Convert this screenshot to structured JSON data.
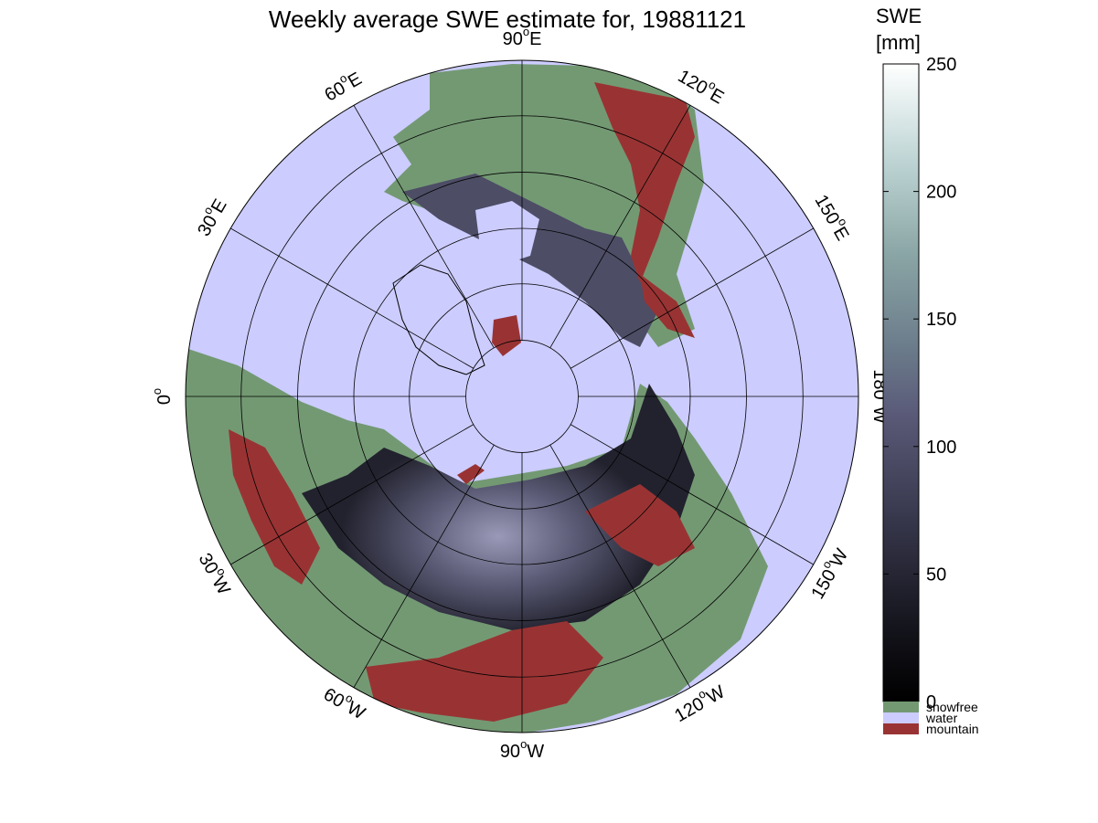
{
  "title": "Weekly average SWE estimate for, 19881121",
  "map": {
    "projection": "north polar stereographic",
    "longitude_labels": [
      {
        "text": "90",
        "hemi": "W",
        "lon": -90
      },
      {
        "text": "60",
        "hemi": "W",
        "lon": -60
      },
      {
        "text": "30",
        "hemi": "W",
        "lon": -30
      },
      {
        "text": "0",
        "hemi": "",
        "lon": 0
      },
      {
        "text": "30",
        "hemi": "E",
        "lon": 30
      },
      {
        "text": "60",
        "hemi": "E",
        "lon": 60
      },
      {
        "text": "90",
        "hemi": "E",
        "lon": 90
      },
      {
        "text": "120",
        "hemi": "E",
        "lon": 120
      },
      {
        "text": "150",
        "hemi": "E",
        "lon": 150
      },
      {
        "text": "180",
        "hemi": "W",
        "lon": 180
      },
      {
        "text": "150",
        "hemi": "W",
        "lon": -150
      },
      {
        "text": "120",
        "hemi": "W",
        "lon": -120
      }
    ],
    "degree_symbol": "o",
    "colors": {
      "water": "#ccccff",
      "snowfree": "#739973",
      "mountain": "#993333",
      "snow_low": "#1a1a26",
      "snow_mid": "#4d4d66",
      "snow_high": "#8f8fad",
      "grid": "#000000"
    }
  },
  "colorbar": {
    "title_line1": "SWE",
    "title_line2": "[mm]",
    "ticks": [
      {
        "value": 0,
        "label": "0"
      },
      {
        "value": 50,
        "label": "50"
      },
      {
        "value": 100,
        "label": "100"
      },
      {
        "value": 150,
        "label": "150"
      },
      {
        "value": 200,
        "label": "200"
      },
      {
        "value": 250,
        "label": "250"
      }
    ],
    "min": 0,
    "max": 250
  },
  "legend": [
    {
      "label": "snowfree",
      "color": "#739973"
    },
    {
      "label": "water",
      "color": "#ccccff"
    },
    {
      "label": "mountain",
      "color": "#993333"
    }
  ]
}
